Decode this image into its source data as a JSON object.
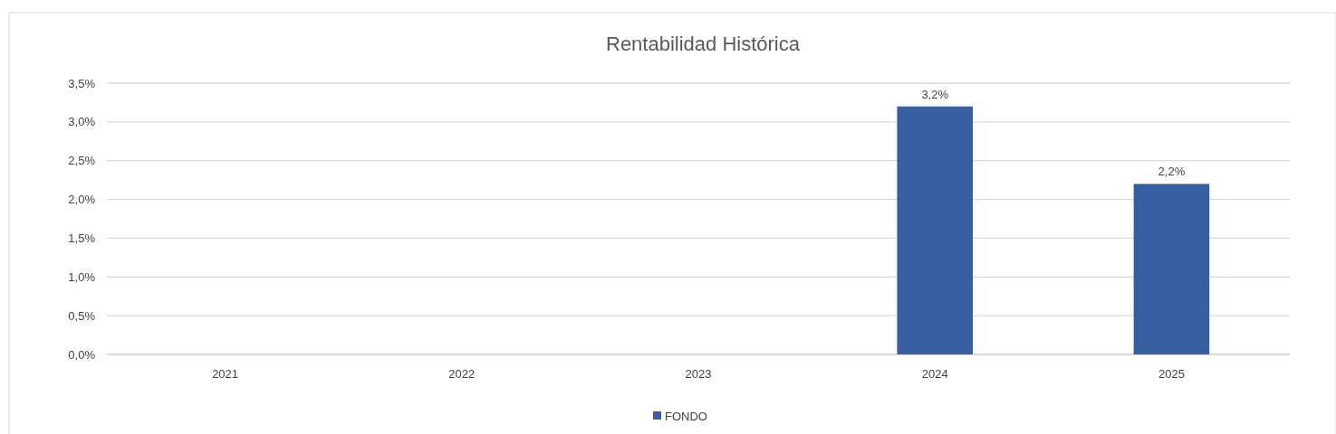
{
  "chart_data": {
    "type": "bar",
    "title": "Rentabilidad Histórica",
    "categories": [
      "2021",
      "2022",
      "2023",
      "2024",
      "2025"
    ],
    "series": [
      {
        "name": "FONDO",
        "color": "#375e9f",
        "values": [
          null,
          null,
          null,
          3.2,
          2.2
        ],
        "value_labels": [
          null,
          null,
          null,
          "3,2%",
          "2,2%"
        ]
      }
    ],
    "ylim": [
      0,
      3.5
    ],
    "yticks": [
      {
        "value": 0,
        "label": "0,0%"
      },
      {
        "value": 0.5,
        "label": "0,5%"
      },
      {
        "value": 1,
        "label": "1,0%"
      },
      {
        "value": 1.5,
        "label": "1,5%"
      },
      {
        "value": 2,
        "label": "2,0%"
      },
      {
        "value": 2.5,
        "label": "2,5%"
      },
      {
        "value": 3,
        "label": "3,0%"
      },
      {
        "value": 3.5,
        "label": "3,5%"
      }
    ],
    "grid": "y",
    "legend": "bottom"
  }
}
